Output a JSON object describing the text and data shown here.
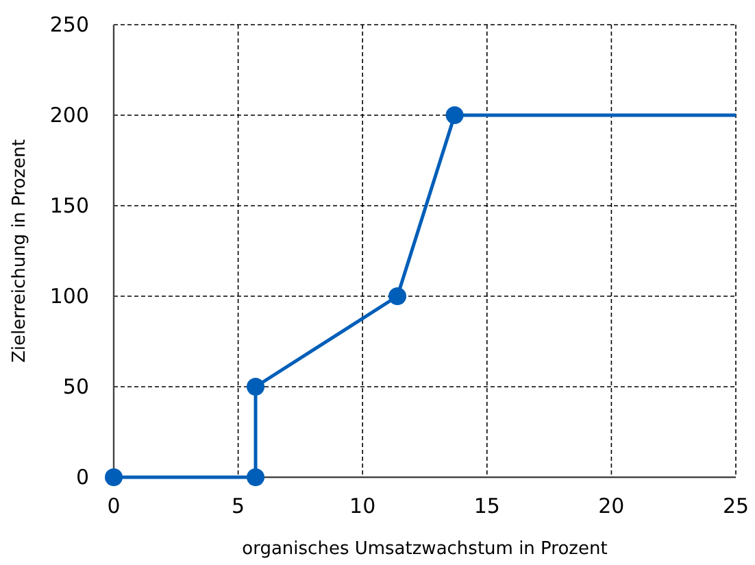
{
  "chart_data": {
    "type": "line",
    "xlabel": "organisches Umsatzwachstum in Prozent",
    "ylabel": "Zielerreichung in Prozent",
    "xlim": [
      0,
      25
    ],
    "xticks": [
      0,
      5,
      10,
      15,
      20,
      25
    ],
    "ylim": [
      0,
      250
    ],
    "yticks": [
      0,
      50,
      100,
      150,
      200,
      250
    ],
    "grid": true,
    "series": [
      {
        "color": "#005eb8",
        "x": [
          0,
          5.7,
          5.7,
          11.4,
          13.7
        ],
        "values": [
          0,
          0,
          50,
          100,
          200
        ],
        "marker": "circle"
      },
      {
        "color": "#005eb8",
        "x": [
          13.7,
          25
        ],
        "values": [
          200,
          200
        ],
        "marker": "none"
      }
    ]
  }
}
